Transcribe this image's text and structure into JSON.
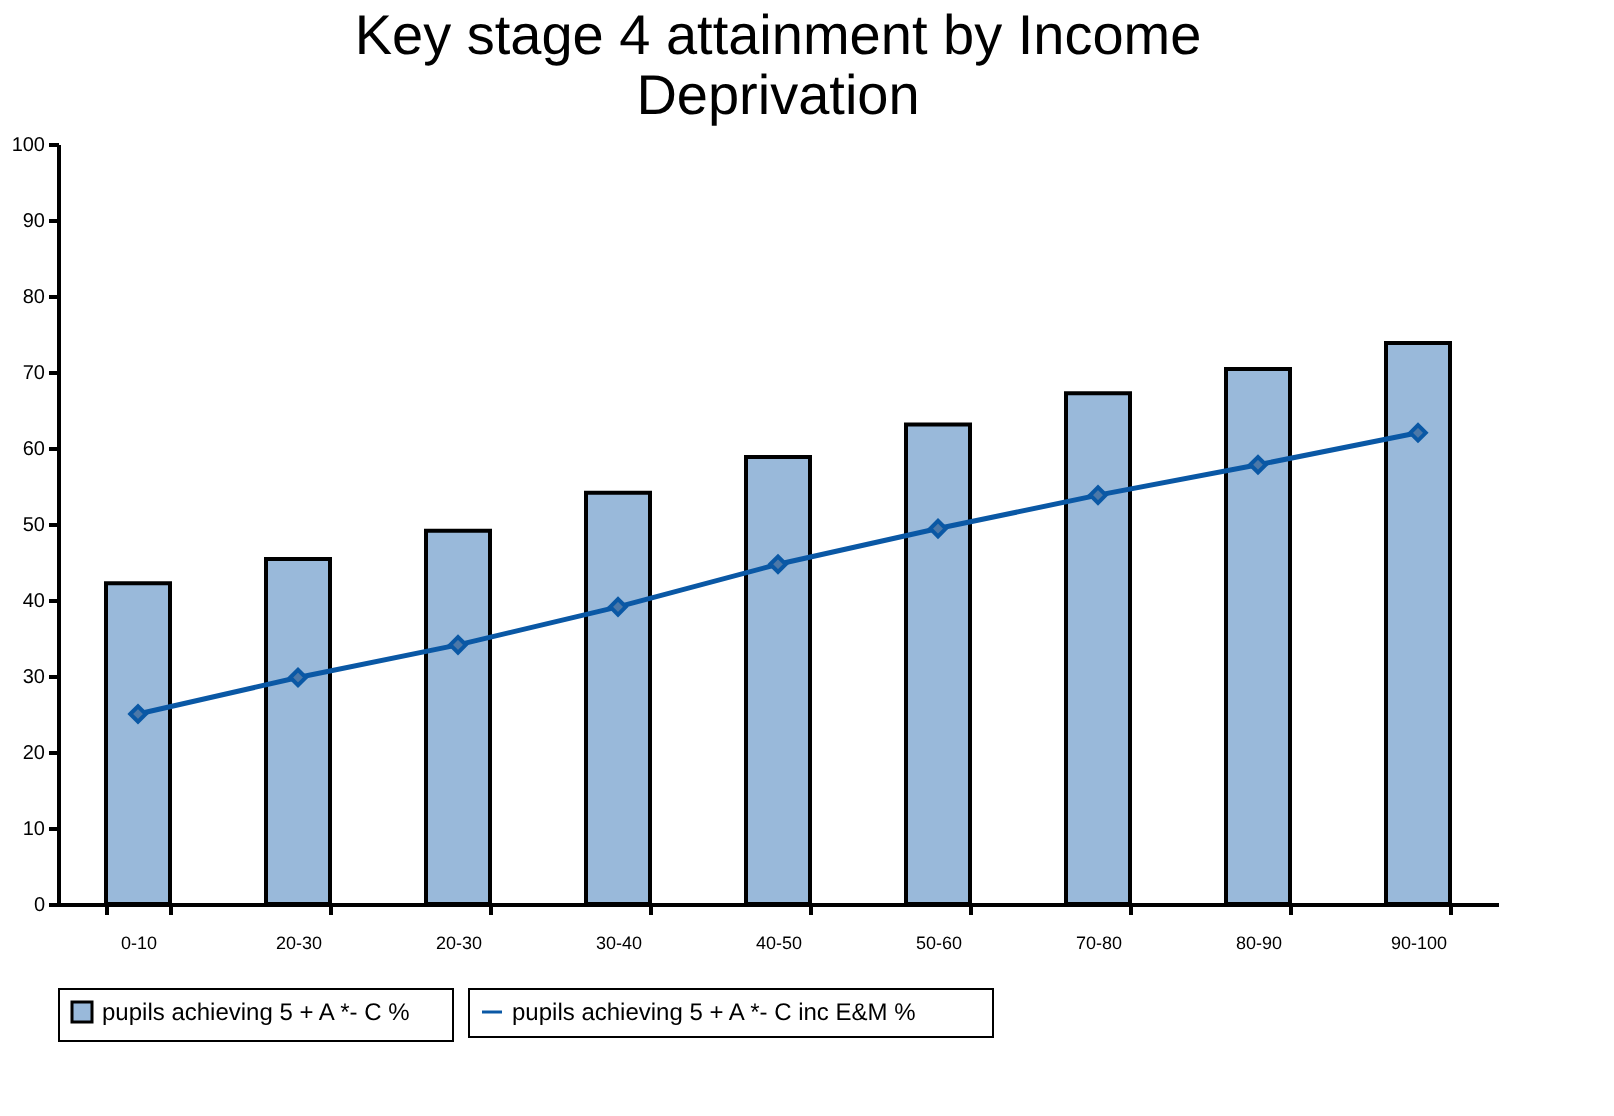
{
  "chart_data": {
    "type": "bar",
    "title": [
      "Key stage 4 attainment by Income",
      "Deprivation"
    ],
    "categories": [
      "0-10",
      "20-30",
      "20-30",
      "30-40",
      "40-50",
      "50-60",
      "70-80",
      "80-90",
      "90-100"
    ],
    "series": [
      {
        "name": "pupils achieving    5 +  A *- C %",
        "color": "#99b9da",
        "values": [
          42.2,
          45.4,
          49.1,
          54.1,
          58.8,
          63.1,
          67.2,
          70.4,
          73.8
        ]
      },
      {
        "name": "pupils achieving    5 +  A *-   C inc E&M    %",
        "type": "line",
        "color": "#0a58a5",
        "values": [
          25,
          29.8,
          34.1,
          39.1,
          44.7,
          49.4,
          53.8,
          57.8,
          62
        ]
      }
    ],
    "ylim": [
      0,
      100
    ],
    "yticks": [
      0,
      10,
      20,
      30,
      40,
      50,
      60,
      70,
      80,
      90,
      100
    ],
    "grid": false,
    "legend": "bottom",
    "marker": "diamond",
    "line_style": "solid"
  }
}
